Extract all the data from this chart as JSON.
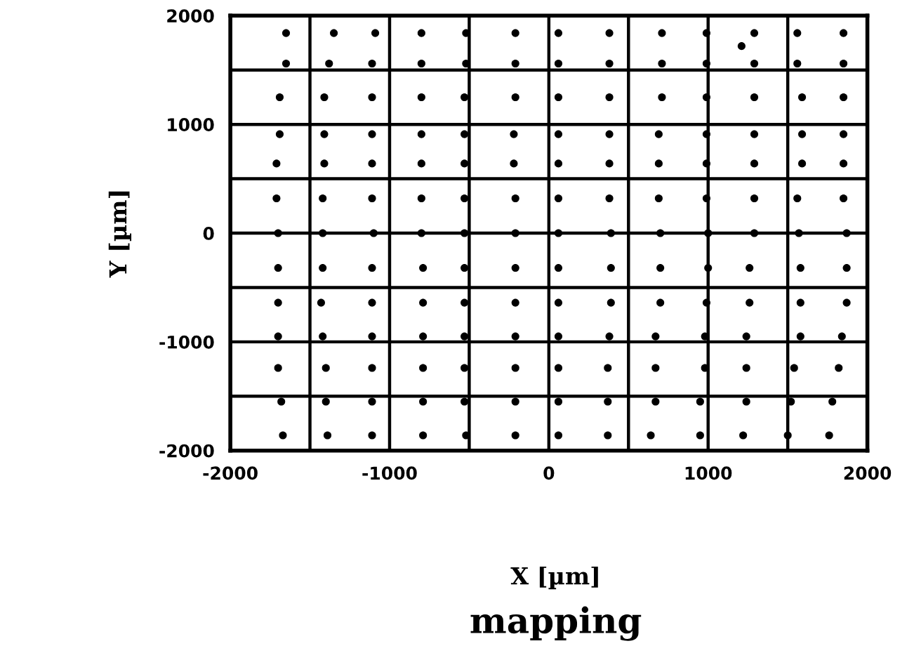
{
  "chart_data": {
    "type": "scatter",
    "title": "mapping",
    "xlabel": "X [µm]",
    "ylabel": "Y [µm]",
    "xlim": [
      -2000,
      2000
    ],
    "ylim": [
      -2000,
      2000
    ],
    "xticks": [
      -2000,
      {
        "value": -1500,
        "label": null
      },
      -1000,
      {
        "value": -500,
        "label": null
      },
      0,
      {
        "value": 500,
        "label": null
      },
      1000,
      {
        "value": 1500,
        "label": null
      },
      2000
    ],
    "yticks": [
      2000,
      {
        "value": 1500,
        "label": null
      },
      1000,
      {
        "value": 500,
        "label": null
      },
      0,
      {
        "value": -500,
        "label": null
      },
      -1000,
      {
        "value": -1500,
        "label": null
      },
      -2000
    ],
    "grid": true,
    "marker": "circle",
    "series": [
      {
        "color": "#000000",
        "x": [
          -1650,
          -1350,
          -1090,
          -800,
          -520,
          -210,
          60,
          380,
          710,
          990,
          1290,
          1560,
          1850,
          -1650,
          -1380,
          -1110,
          -800,
          -520,
          -210,
          60,
          380,
          710,
          990,
          1290,
          1560,
          1850,
          -1690,
          -1410,
          -1110,
          -800,
          -530,
          -210,
          60,
          380,
          710,
          990,
          1290,
          1590,
          1850,
          -1690,
          -1410,
          -1110,
          -800,
          -530,
          -220,
          60,
          380,
          690,
          990,
          1290,
          1590,
          1850,
          -1710,
          -1410,
          -1110,
          -800,
          -530,
          -220,
          60,
          380,
          690,
          990,
          1290,
          1590,
          1850,
          -1710,
          -1420,
          -1110,
          -800,
          -530,
          -210,
          60,
          380,
          690,
          990,
          1290,
          1560,
          1850,
          -1700,
          -1420,
          -1100,
          -800,
          -530,
          -210,
          60,
          390,
          700,
          1000,
          1290,
          1570,
          1870,
          -1700,
          -1420,
          -1110,
          -790,
          -530,
          -210,
          60,
          390,
          700,
          1000,
          1260,
          1580,
          1870,
          -1700,
          -1430,
          -1110,
          -790,
          -530,
          -210,
          60,
          390,
          700,
          990,
          1260,
          1580,
          1870,
          -1700,
          -1420,
          -1110,
          -790,
          -530,
          -210,
          60,
          380,
          670,
          980,
          1240,
          1580,
          1840,
          -1700,
          -1400,
          -1110,
          -790,
          -530,
          -210,
          60,
          370,
          670,
          980,
          1240,
          1540,
          1820,
          -1680,
          -1400,
          -1110,
          -790,
          -530,
          -210,
          60,
          370,
          670,
          950,
          1240,
          1520,
          1780,
          -1670,
          -1390,
          -1110,
          -790,
          -520,
          -210,
          60,
          370,
          640,
          950,
          1220,
          1500,
          1760,
          1210
        ],
        "values": [
          1840,
          1840,
          1840,
          1840,
          1840,
          1840,
          1840,
          1840,
          1840,
          1840,
          1840,
          1840,
          1840,
          1560,
          1560,
          1560,
          1560,
          1560,
          1560,
          1560,
          1560,
          1560,
          1560,
          1560,
          1560,
          1560,
          1250,
          1250,
          1250,
          1250,
          1250,
          1250,
          1250,
          1250,
          1250,
          1250,
          1250,
          1250,
          1250,
          910,
          910,
          910,
          910,
          910,
          910,
          910,
          910,
          910,
          910,
          910,
          910,
          910,
          640,
          640,
          640,
          640,
          640,
          640,
          640,
          640,
          640,
          640,
          640,
          640,
          640,
          320,
          320,
          320,
          320,
          320,
          320,
          320,
          320,
          320,
          320,
          320,
          320,
          320,
          0,
          0,
          0,
          0,
          0,
          0,
          0,
          0,
          0,
          0,
          0,
          0,
          0,
          -320,
          -320,
          -320,
          -320,
          -320,
          -320,
          -320,
          -320,
          -320,
          -320,
          -320,
          -320,
          -320,
          -640,
          -640,
          -640,
          -640,
          -640,
          -640,
          -640,
          -640,
          -640,
          -640,
          -640,
          -640,
          -640,
          -950,
          -950,
          -950,
          -950,
          -950,
          -950,
          -950,
          -950,
          -950,
          -950,
          -950,
          -950,
          -950,
          -1240,
          -1240,
          -1240,
          -1240,
          -1240,
          -1240,
          -1240,
          -1240,
          -1240,
          -1240,
          -1240,
          -1240,
          -1240,
          -1550,
          -1550,
          -1550,
          -1550,
          -1550,
          -1550,
          -1550,
          -1550,
          -1550,
          -1550,
          -1550,
          -1550,
          -1550,
          -1860,
          -1860,
          -1860,
          -1860,
          -1860,
          -1860,
          -1860,
          -1860,
          -1860,
          -1860,
          -1860,
          -1860,
          -1860,
          1720
        ]
      }
    ]
  }
}
